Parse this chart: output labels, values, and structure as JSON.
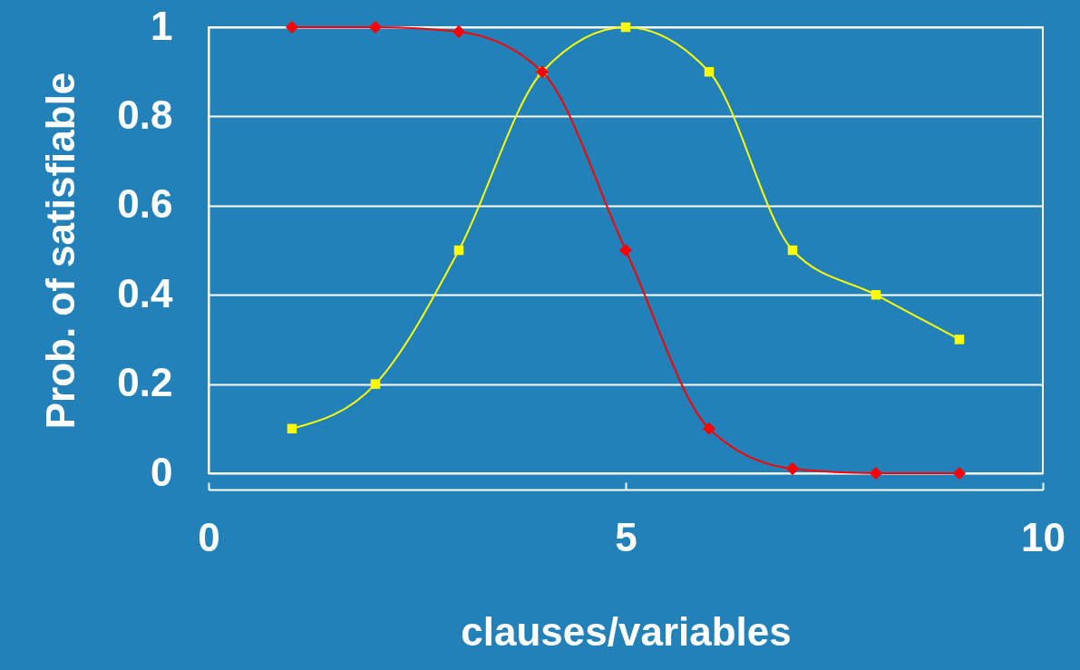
{
  "chart_data": {
    "type": "line",
    "xlabel": "clauses/variables",
    "ylabel": "Prob. of satisfiable",
    "x": [
      1,
      2,
      3,
      4,
      5,
      6,
      7,
      8,
      9
    ],
    "series": [
      {
        "color": "#ff0000",
        "marker": "diamond",
        "values": [
          1,
          1,
          0.99,
          0.9,
          0.5,
          0.1,
          0.01,
          0,
          0
        ]
      },
      {
        "color": "#ffff00",
        "marker": "square",
        "values": [
          0.1,
          0.2,
          0.5,
          0.9,
          1,
          0.9,
          0.5,
          0.4,
          0.3
        ]
      }
    ],
    "xlim": [
      0,
      10
    ],
    "xticks": [
      0,
      5,
      10
    ],
    "ylim": [
      0,
      1
    ],
    "yticks": [
      0,
      0.2,
      0.4,
      0.6,
      0.8,
      1
    ],
    "grid": "y",
    "line_style": "solid"
  }
}
